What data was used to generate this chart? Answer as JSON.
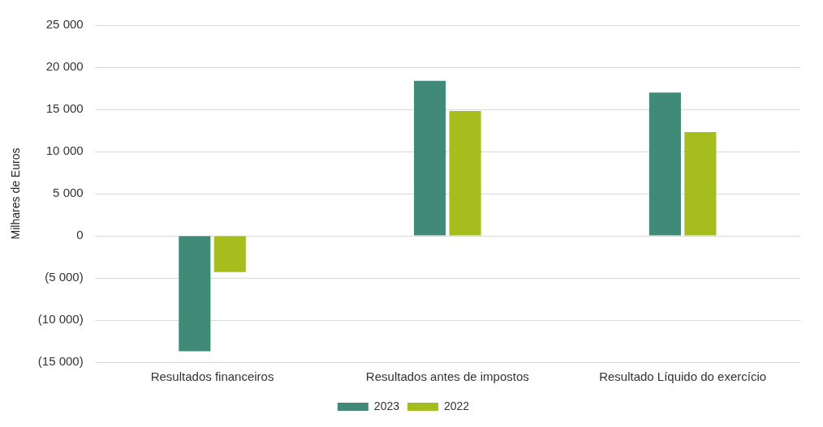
{
  "chart_data": {
    "type": "bar",
    "ylabel": "Milhares de Euros",
    "categories": [
      "Resultados financeiros",
      "Resultados antes de impostos",
      "Resultado Líquido do exercício"
    ],
    "series": [
      {
        "name": "2023",
        "color": "#428a78",
        "values": [
          -13700,
          18400,
          17000
        ]
      },
      {
        "name": "2022",
        "color": "#a6bd1e",
        "values": [
          -4300,
          14800,
          12300
        ]
      }
    ],
    "ylim": [
      -15000,
      25000
    ],
    "yticks": [
      {
        "value": -15000,
        "label": "(15 000)"
      },
      {
        "value": -10000,
        "label": "(10 000)"
      },
      {
        "value": -5000,
        "label": "(5 000)"
      },
      0,
      {
        "value": 5000,
        "label": "5 000"
      },
      {
        "value": 10000,
        "label": "10 000"
      },
      {
        "value": 15000,
        "label": "15 000"
      },
      {
        "value": 20000,
        "label": "20 000"
      },
      {
        "value": 25000,
        "label": "25 000"
      }
    ],
    "grid": "y",
    "legend": "bottom"
  }
}
